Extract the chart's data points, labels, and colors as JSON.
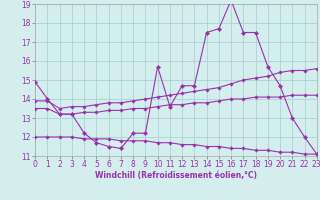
{
  "x": [
    0,
    1,
    2,
    3,
    4,
    5,
    6,
    7,
    8,
    9,
    10,
    11,
    12,
    13,
    14,
    15,
    16,
    17,
    18,
    19,
    20,
    21,
    22,
    23
  ],
  "line_spiky": [
    14.9,
    14.0,
    13.2,
    13.2,
    12.2,
    11.7,
    11.5,
    11.4,
    12.2,
    12.2,
    15.7,
    13.6,
    14.7,
    14.7,
    17.5,
    17.7,
    19.2,
    17.5,
    17.5,
    15.7,
    14.7,
    13.0,
    12.0,
    11.1
  ],
  "line_upper": [
    13.9,
    13.9,
    13.5,
    13.6,
    13.6,
    13.7,
    13.8,
    13.8,
    13.9,
    14.0,
    14.1,
    14.2,
    14.3,
    14.4,
    14.5,
    14.6,
    14.8,
    15.0,
    15.1,
    15.2,
    15.4,
    15.5,
    15.5,
    15.6
  ],
  "line_mid": [
    13.5,
    13.5,
    13.2,
    13.2,
    13.3,
    13.3,
    13.4,
    13.4,
    13.5,
    13.5,
    13.6,
    13.7,
    13.7,
    13.8,
    13.8,
    13.9,
    14.0,
    14.0,
    14.1,
    14.1,
    14.1,
    14.2,
    14.2,
    14.2
  ],
  "line_lower": [
    12.0,
    12.0,
    12.0,
    12.0,
    11.9,
    11.9,
    11.9,
    11.8,
    11.8,
    11.8,
    11.7,
    11.7,
    11.6,
    11.6,
    11.5,
    11.5,
    11.4,
    11.4,
    11.3,
    11.3,
    11.2,
    11.2,
    11.1,
    11.1
  ],
  "color": "#9932aa",
  "bg_color": "#d4eeee",
  "grid_color": "#aad4d4",
  "xlabel": "Windchill (Refroidissement éolien,°C)",
  "ylim": [
    11,
    19
  ],
  "xlim": [
    0,
    23
  ],
  "yticks": [
    11,
    12,
    13,
    14,
    15,
    16,
    17,
    18,
    19
  ],
  "xticks": [
    0,
    1,
    2,
    3,
    4,
    5,
    6,
    7,
    8,
    9,
    10,
    11,
    12,
    13,
    14,
    15,
    16,
    17,
    18,
    19,
    20,
    21,
    22,
    23
  ],
  "tick_fontsize": 5.5,
  "xlabel_fontsize": 5.5
}
